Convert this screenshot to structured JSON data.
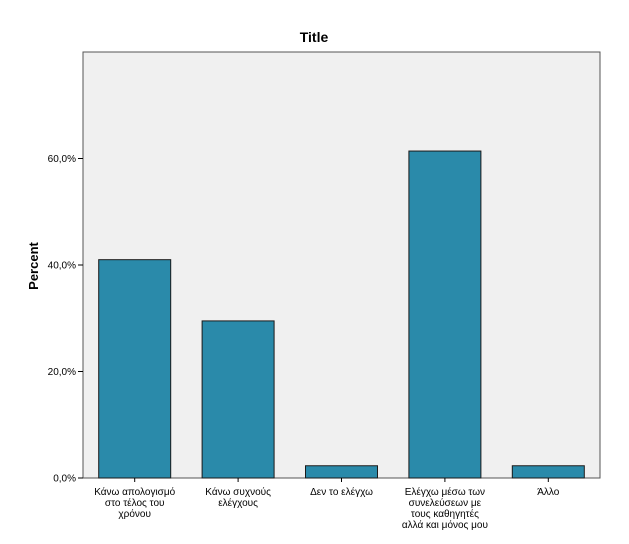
{
  "chart_data": {
    "type": "bar",
    "title": "Title",
    "xlabel": "",
    "ylabel": "Percent",
    "categories": [
      [
        "Κάνω απολογισμό",
        "στο τέλος του",
        "χρόνου"
      ],
      [
        "Κάνω συχνούς",
        "ελέγχους"
      ],
      [
        "Δεν το ελέγχω"
      ],
      [
        "Ελέγχω μέσω των",
        "συνελεύσεων με",
        "τους καθηγητές",
        "αλλά και μόνος μου"
      ],
      [
        "Άλλο"
      ]
    ],
    "values": [
      41.0,
      29.5,
      2.3,
      61.4,
      2.3
    ],
    "ylim": [
      0,
      80
    ],
    "yticks": [
      0,
      20,
      40,
      60
    ],
    "ytick_labels": [
      "0,0%",
      "20,0%",
      "40,0%",
      "60,0%"
    ],
    "bar_color": "#2a8aaa",
    "plot_background": "#f0f0f0",
    "grid": false
  }
}
